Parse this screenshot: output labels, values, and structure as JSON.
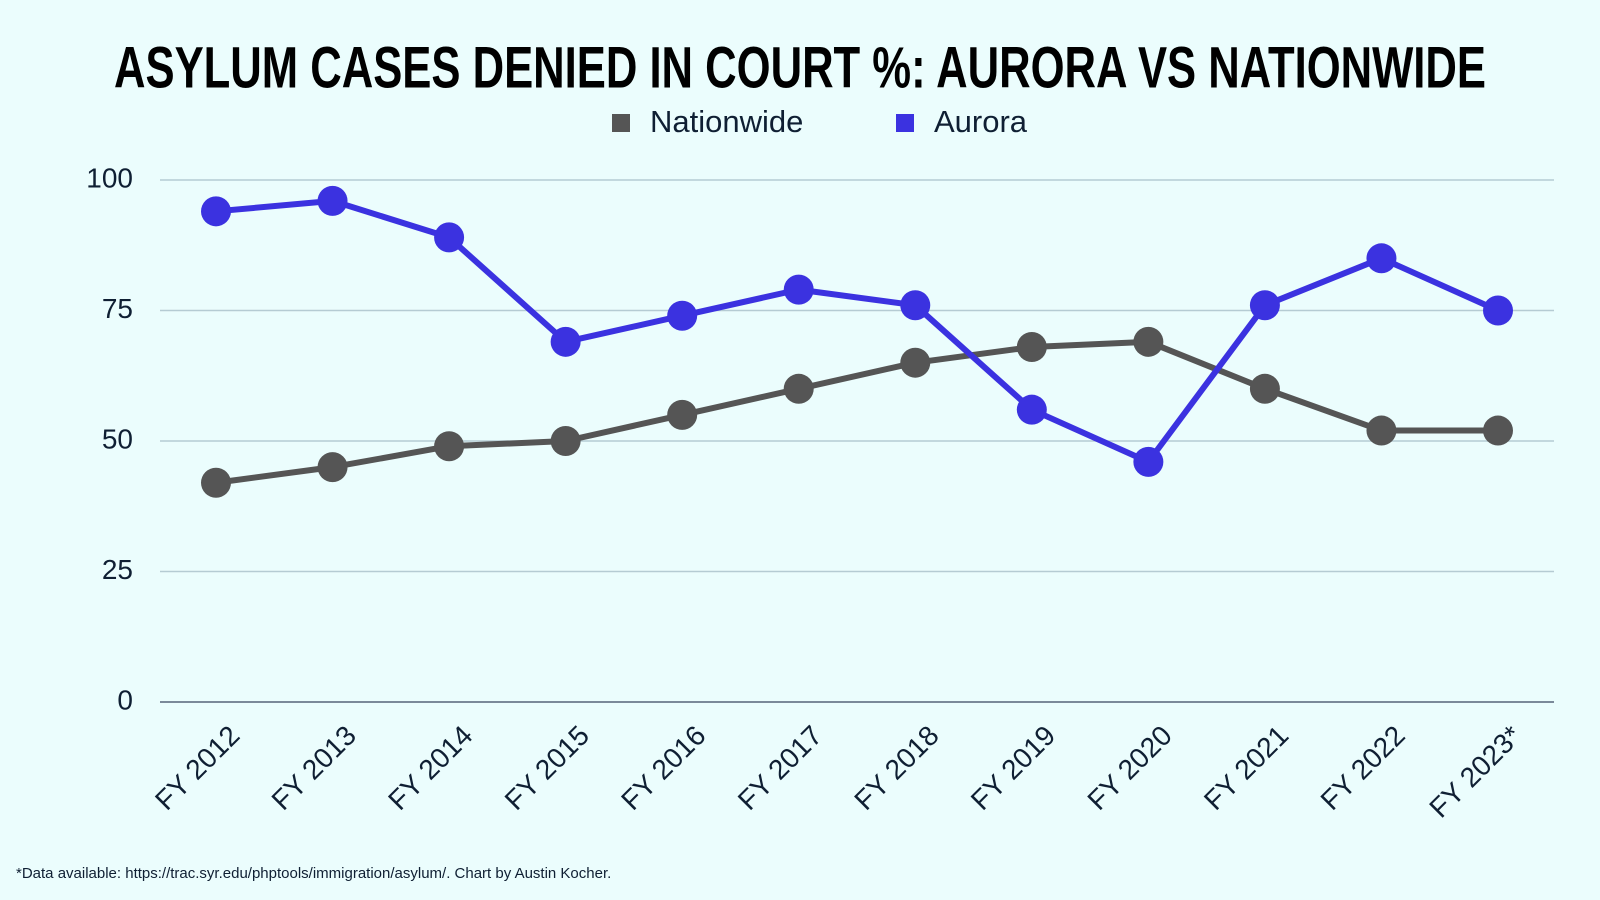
{
  "chart_data": {
    "type": "line",
    "title": "ASYLUM CASES DENIED IN COURT %: AURORA VS NATIONWIDE",
    "categories": [
      "FY 2012",
      "FY 2013",
      "FY 2014",
      "FY 2015",
      "FY 2016",
      "FY 2017",
      "FY 2018",
      "FY 2019",
      "FY 2020",
      "FY 2021",
      "FY 2022",
      "FY 2023*"
    ],
    "series": [
      {
        "name": "Nationwide",
        "color": "#555555",
        "values": [
          42,
          45,
          49,
          50,
          55,
          60,
          65,
          68,
          69,
          60,
          52,
          52
        ]
      },
      {
        "name": "Aurora",
        "color": "#3b32e0",
        "values": [
          94,
          96,
          89,
          69,
          74,
          79,
          76,
          56,
          46,
          76,
          85,
          75
        ]
      }
    ],
    "ylim": [
      0,
      100
    ],
    "yticks": [
      0,
      25,
      50,
      75,
      100
    ],
    "grid": true,
    "legend": "top",
    "footnote": "*Data available: https://trac.syr.edu/phptools/immigration/asylum/. Chart by Austin Kocher."
  }
}
